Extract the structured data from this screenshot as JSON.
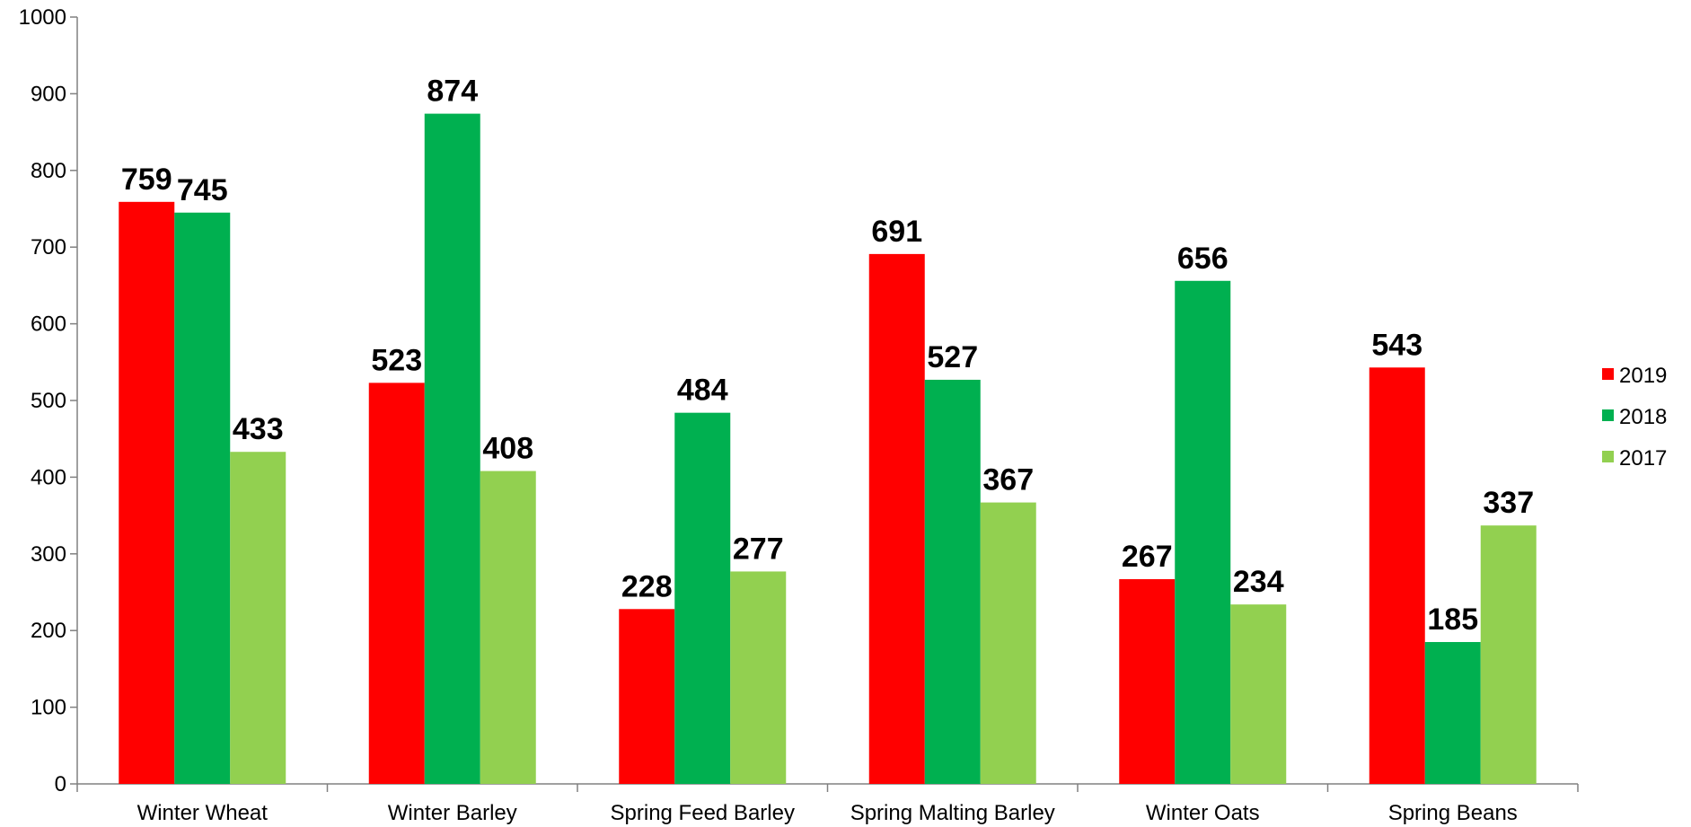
{
  "chart_data": {
    "type": "bar",
    "title": "",
    "xlabel": "",
    "ylabel": "",
    "ylim": [
      0,
      1000
    ],
    "yticks": [
      0,
      100,
      200,
      300,
      400,
      500,
      600,
      700,
      800,
      900,
      1000
    ],
    "grid": false,
    "legend_position": "right",
    "categories": [
      "Winter Wheat",
      "Winter Barley",
      "Spring Feed Barley",
      "Spring Malting Barley",
      "Winter Oats",
      "Spring Beans"
    ],
    "series": [
      {
        "name": "2019",
        "color": "#ff0000",
        "values": [
          759,
          523,
          228,
          691,
          267,
          543
        ]
      },
      {
        "name": "2018",
        "color": "#00b050",
        "values": [
          745,
          874,
          484,
          527,
          656,
          185
        ]
      },
      {
        "name": "2017",
        "color": "#92d050",
        "values": [
          433,
          408,
          277,
          367,
          234,
          337
        ]
      }
    ]
  }
}
